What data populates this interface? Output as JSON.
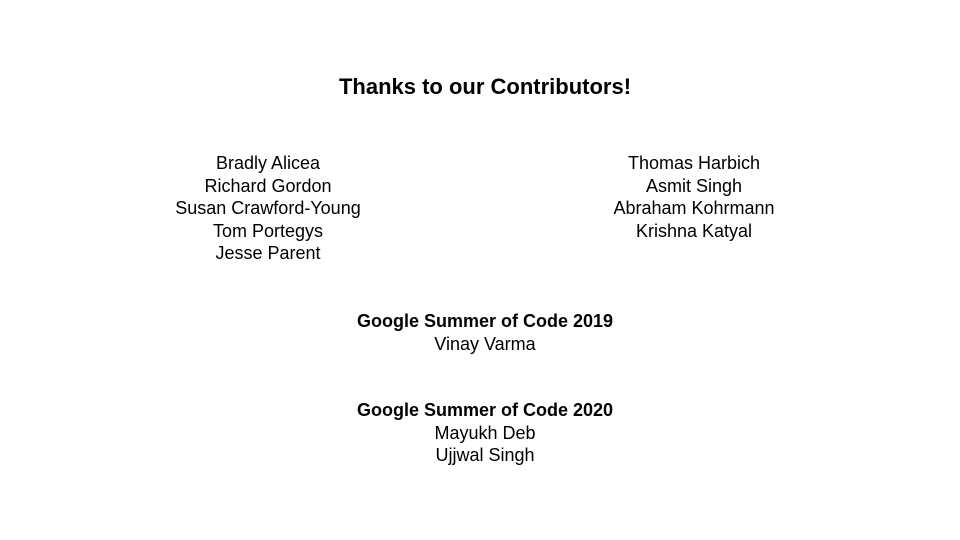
{
  "title": "Thanks to our Contributors!",
  "contributors": {
    "left": [
      "Bradly Alicea",
      "Richard Gordon",
      "Susan Crawford-Young",
      "Tom Portegys",
      "Jesse Parent"
    ],
    "right": [
      "Thomas Harbich",
      "Asmit Singh",
      "Abraham Kohrmann",
      "Krishna Katyal"
    ]
  },
  "gsoc": [
    {
      "heading": "Google Summer of Code 2019",
      "names": [
        "Vinay Varma"
      ]
    },
    {
      "heading": "Google Summer of Code 2020",
      "names": [
        "Mayukh Deb",
        "Ujjwal Singh"
      ]
    }
  ]
}
